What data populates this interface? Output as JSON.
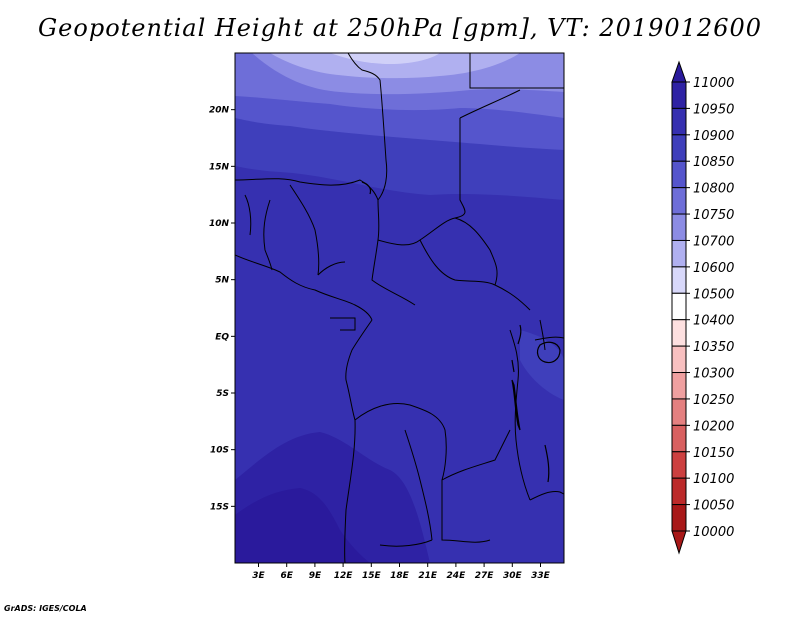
{
  "title": "Geopotential Height at 250hPa [gpm], VT: 2019012600",
  "credit": "GrADS: IGES/COLA",
  "map": {
    "lon_labels": [
      "3E",
      "6E",
      "9E",
      "12E",
      "15E",
      "18E",
      "21E",
      "24E",
      "27E",
      "30E",
      "33E"
    ],
    "lat_labels": [
      "20N",
      "15N",
      "10N",
      "5N",
      "EQ",
      "5S",
      "10S",
      "15S"
    ]
  },
  "colorbar": {
    "levels": [
      "11000",
      "10950",
      "10900",
      "10850",
      "10800",
      "10750",
      "10700",
      "10600",
      "10500",
      "10400",
      "10350",
      "10300",
      "10250",
      "10200",
      "10150",
      "10100",
      "10050",
      "10000"
    ],
    "colors": [
      "#2a1a9c",
      "#2e22a4",
      "#3630b0",
      "#3f3fbb",
      "#5555cc",
      "#6e6ed8",
      "#8c8ce4",
      "#b0b0f0",
      "#d8d8fa",
      "#ffffff",
      "#fde0e0",
      "#f8c0c0",
      "#efa0a0",
      "#e48080",
      "#d86060",
      "#cc4040",
      "#bc2a2a",
      "#a81818"
    ]
  },
  "chart_data": {
    "type": "heatmap",
    "title": "Geopotential Height at 250hPa [gpm], VT: 2019012600",
    "xlabel": "",
    "ylabel": "",
    "x_ticks": [
      "3E",
      "6E",
      "9E",
      "12E",
      "15E",
      "18E",
      "21E",
      "24E",
      "27E",
      "30E",
      "33E"
    ],
    "y_ticks": [
      "20N",
      "15N",
      "10N",
      "5N",
      "EQ",
      "5S",
      "10S",
      "15S"
    ],
    "xlim": [
      0.5,
      35.5
    ],
    "ylim": [
      -20,
      25
    ],
    "levels": [
      10000,
      10050,
      10100,
      10150,
      10200,
      10250,
      10300,
      10350,
      10400,
      10500,
      10600,
      10700,
      10750,
      10800,
      10850,
      10900,
      10950,
      11000
    ]
  }
}
